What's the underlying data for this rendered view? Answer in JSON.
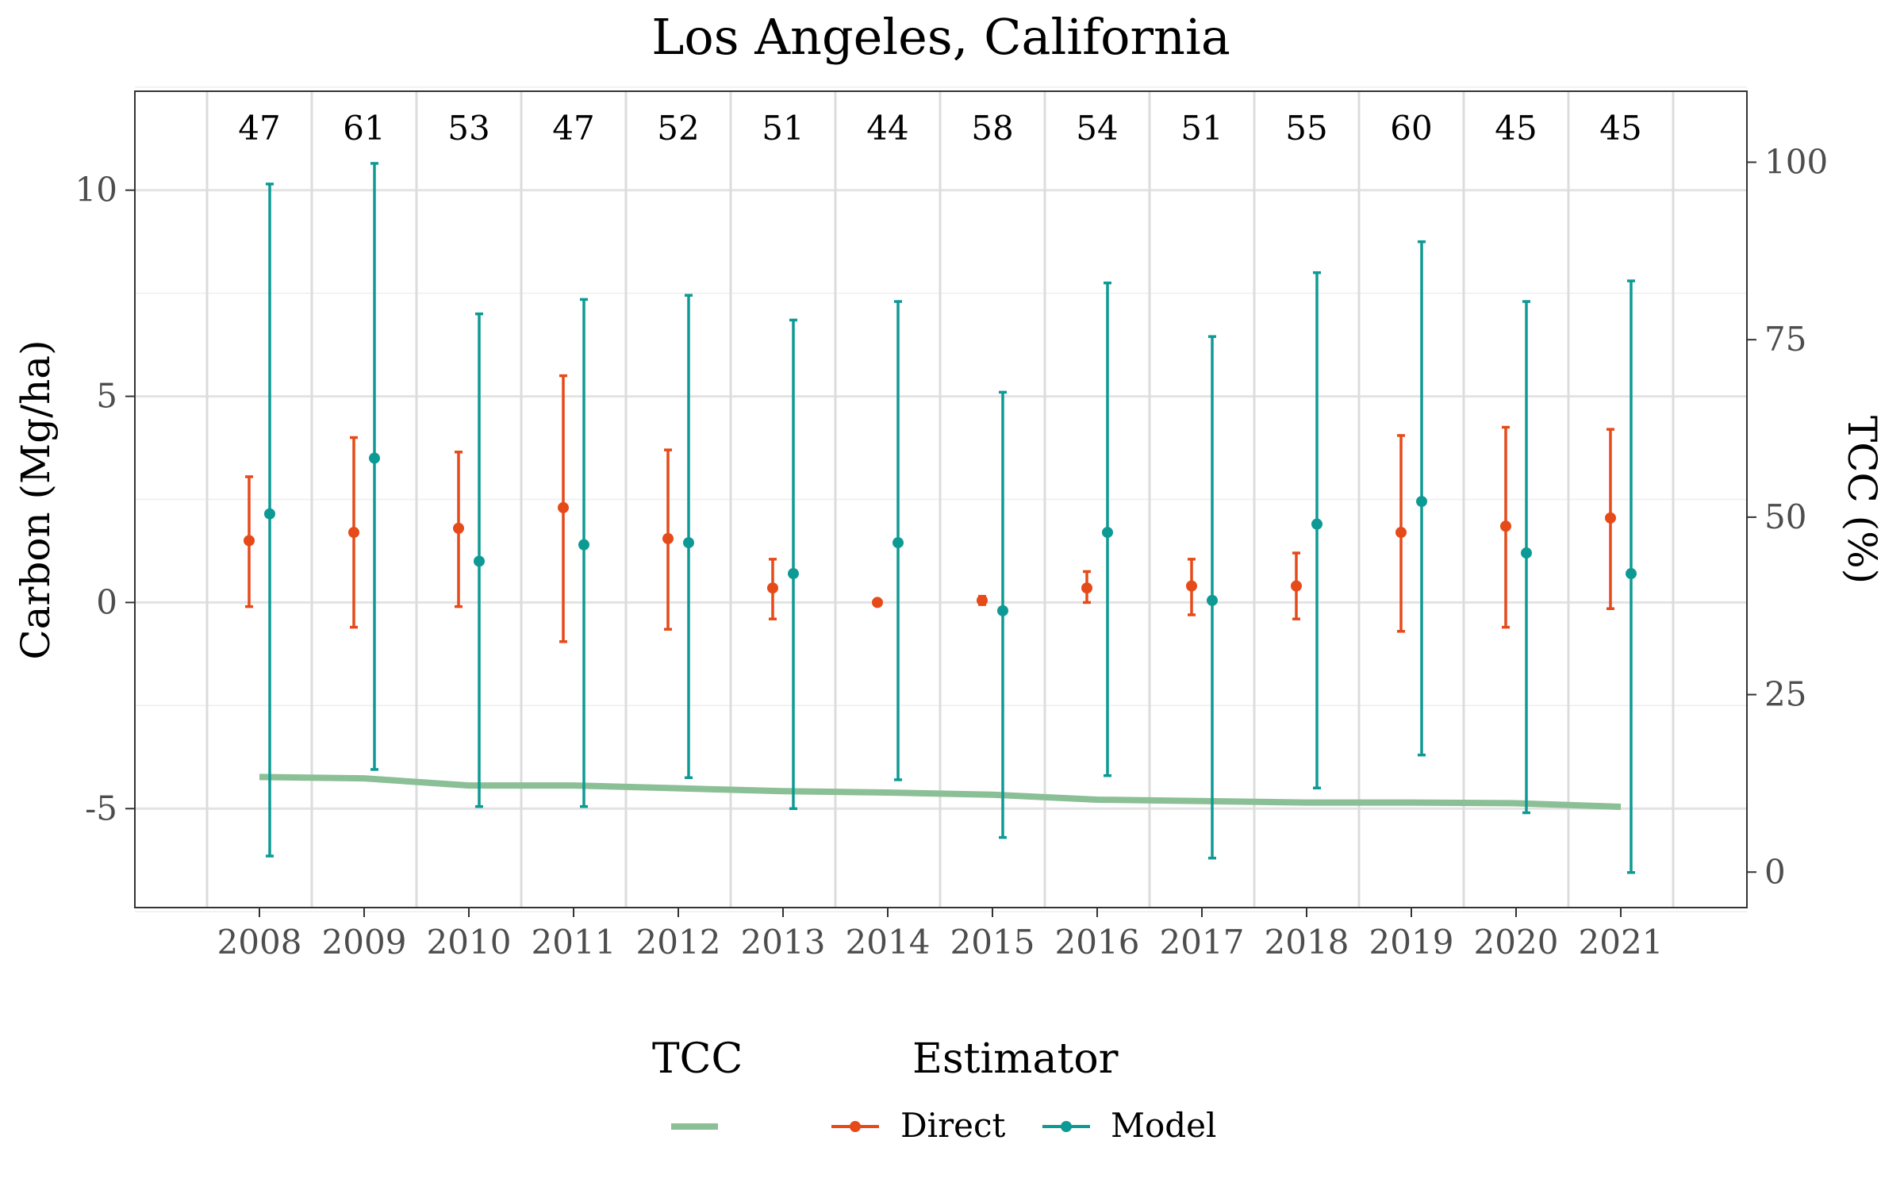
{
  "chart_data": {
    "type": "scatter",
    "title": "Los Angeles, California",
    "ylabel": "Carbon (Mg/ha)",
    "ylabel_right": "TCC (%)",
    "xlabel": "",
    "categories": [
      "2008",
      "2009",
      "2010",
      "2011",
      "2012",
      "2013",
      "2014",
      "2015",
      "2016",
      "2017",
      "2018",
      "2019",
      "2020",
      "2021"
    ],
    "sample_sizes": [
      "47",
      "61",
      "53",
      "47",
      "52",
      "51",
      "44",
      "58",
      "54",
      "51",
      "55",
      "60",
      "45",
      "45"
    ],
    "ylim": [
      -7.4,
      12.4
    ],
    "yticks": [
      -5,
      0,
      5,
      10
    ],
    "ytick_labels": [
      "-5",
      "0",
      "5",
      "10"
    ],
    "y2lim": [
      -5,
      110
    ],
    "y2ticks": [
      0,
      25,
      50,
      75,
      100
    ],
    "y2tick_labels": [
      "0",
      "25",
      "50",
      "75",
      "100"
    ],
    "grid": true,
    "series": [
      {
        "name": "Direct",
        "color": "#E64A19",
        "mean": [
          1.5,
          1.7,
          1.8,
          2.3,
          1.55,
          0.35,
          0.0,
          0.05,
          0.35,
          0.4,
          0.4,
          1.7,
          1.85,
          2.05
        ],
        "lower": [
          -0.1,
          -0.6,
          -0.1,
          -0.95,
          -0.65,
          -0.4,
          0.0,
          -0.05,
          0.0,
          -0.3,
          -0.4,
          -0.7,
          -0.6,
          -0.15
        ],
        "upper": [
          3.05,
          4.0,
          3.65,
          5.5,
          3.7,
          1.05,
          0.0,
          0.15,
          0.75,
          1.05,
          1.2,
          4.05,
          4.25,
          4.2
        ]
      },
      {
        "name": "Model",
        "color": "#0E9A94",
        "mean": [
          2.15,
          3.5,
          1.0,
          1.4,
          1.45,
          0.7,
          1.45,
          -0.2,
          1.7,
          0.05,
          1.9,
          2.45,
          1.2,
          0.7
        ],
        "lower": [
          -6.15,
          -4.05,
          -4.95,
          -4.95,
          -4.25,
          -5.0,
          -4.3,
          -5.7,
          -4.2,
          -6.2,
          -4.5,
          -3.7,
          -5.1,
          -6.55
        ],
        "upper": [
          10.15,
          10.65,
          7.0,
          7.35,
          7.45,
          6.85,
          7.3,
          5.1,
          7.75,
          6.45,
          8.0,
          8.75,
          7.3,
          7.8
        ]
      },
      {
        "name": "TCC",
        "color": "#8BBF96",
        "axis": "right",
        "values": [
          13.4,
          13.2,
          12.2,
          12.2,
          11.8,
          11.4,
          11.2,
          10.9,
          10.2,
          10.0,
          9.8,
          9.8,
          9.7,
          9.2
        ]
      }
    ],
    "legend": {
      "placement": "bottom",
      "tcc_title": "TCC",
      "estimator_title": "Estimator",
      "entries": [
        "Direct",
        "Model"
      ]
    }
  }
}
